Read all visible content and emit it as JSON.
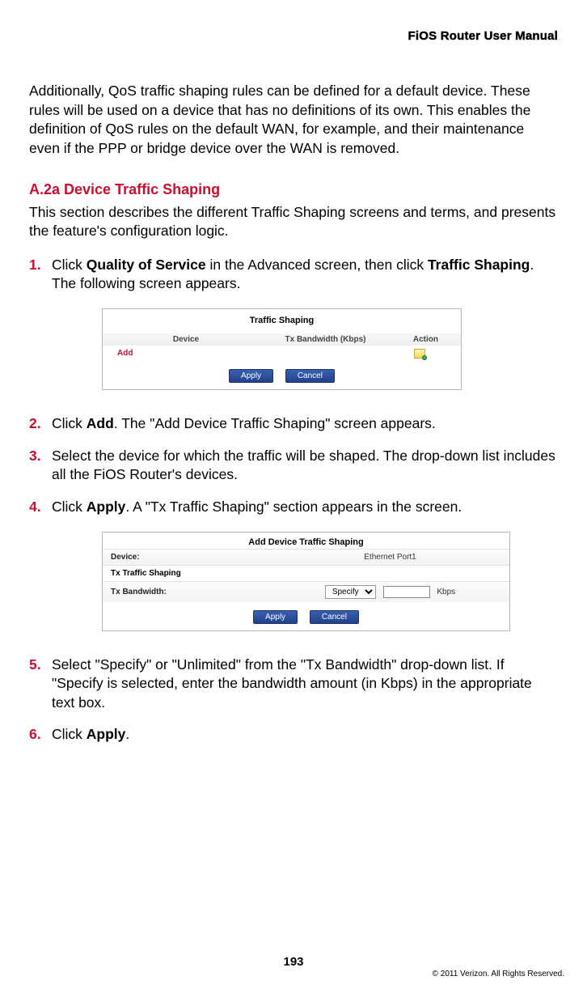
{
  "header": {
    "running": "FiOS Router User Manual"
  },
  "intro": "Additionally, QoS traffic shaping rules can be defined for a default device. These rules will be used on a device that has no definitions of its own. This enables the definition of QoS rules on the default WAN, for example, and their maintenance even if the PPP or bridge device over the WAN is removed.",
  "section": {
    "heading": "A.2a Device Traffic Shaping",
    "body": "This section describes the different Traffic Shaping screens and terms, and presents the feature's configuration logic."
  },
  "steps": {
    "s1": {
      "num": "1.",
      "pre": "Click ",
      "bold1": "Quality of Service",
      "mid": " in the Advanced screen, then click ",
      "bold2": "Traffic Shaping",
      "post": ". The following screen appears."
    },
    "s2": {
      "num": "2.",
      "pre": "Click ",
      "bold1": "Add",
      "post": ". The \"Add Device Traffic Shaping\" screen appears."
    },
    "s3": {
      "num": "3.",
      "text": "Select the device for which the traffic will be shaped. The drop-down list includes all the FiOS Router's devices."
    },
    "s4": {
      "num": "4.",
      "pre": "Click ",
      "bold1": "Apply",
      "post": ". A \"Tx Traffic Shaping\" section appears in the screen."
    },
    "s5": {
      "num": "5.",
      "text": "Select \"Specify\" or \"Unlimited\" from the \"Tx Bandwidth\" drop-down list. If \"Specify is selected, enter the bandwidth amount (in Kbps) in the appropriate text box."
    },
    "s6": {
      "num": "6.",
      "pre": "Click ",
      "bold1": "Apply",
      "post": "."
    }
  },
  "fig1": {
    "title": "Traffic Shaping",
    "cols": {
      "device": "Device",
      "band": "Tx Bandwidth (Kbps)",
      "action": "Action"
    },
    "add": "Add",
    "apply": "Apply",
    "cancel": "Cancel"
  },
  "fig2": {
    "title": "Add Device Traffic Shaping",
    "device_lbl": "Device:",
    "device_val": "Ethernet Port1",
    "sub": "Tx Traffic Shaping",
    "band_lbl": "Tx Bandwidth:",
    "select_val": "Specify",
    "input_val": "",
    "unit": "Kbps",
    "apply": "Apply",
    "cancel": "Cancel"
  },
  "footer": {
    "page": "193",
    "copyright": "© 2011 Verizon. All Rights Reserved."
  }
}
